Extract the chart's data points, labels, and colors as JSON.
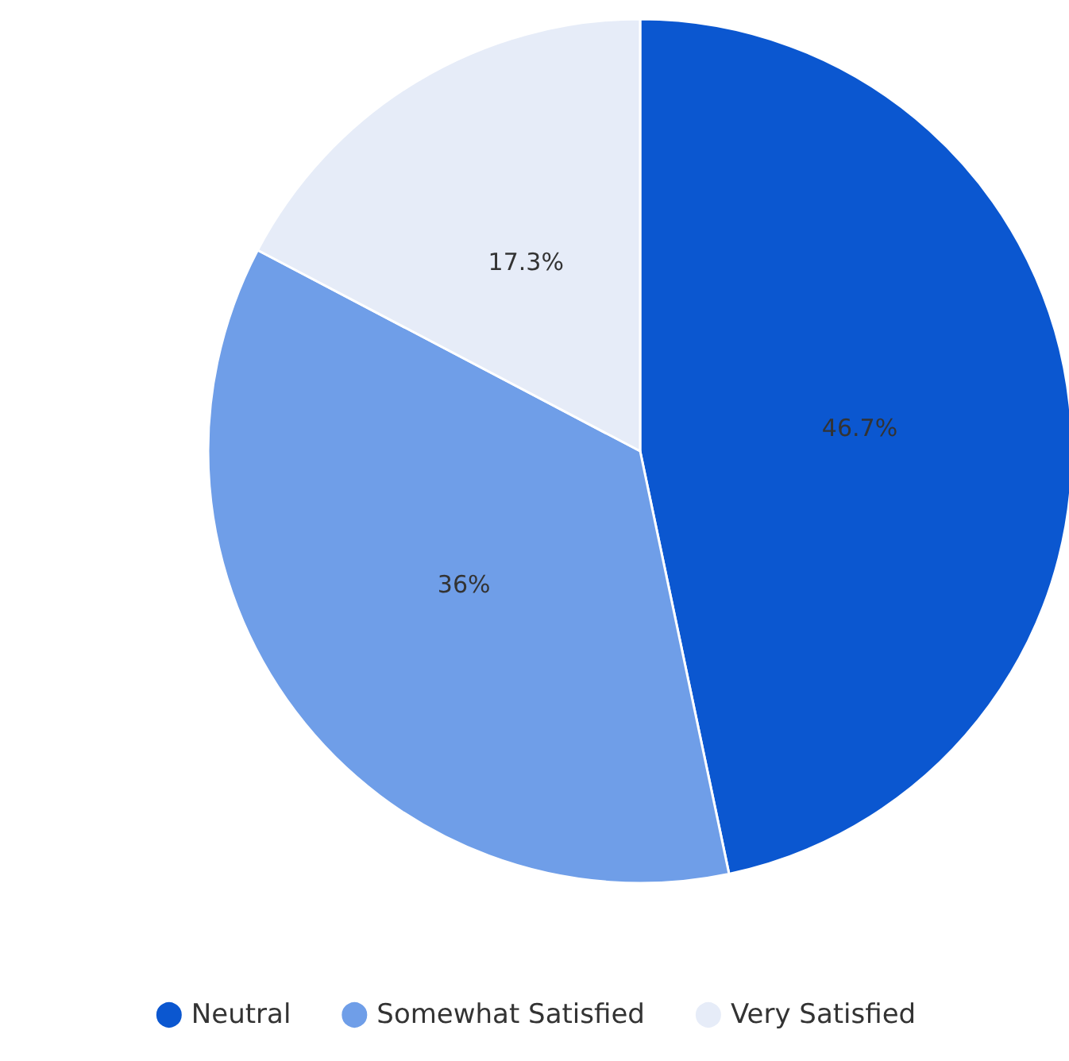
{
  "chart_data": {
    "type": "pie",
    "categories": [
      "Neutral",
      "Somewhat Satisfied",
      "Very Satisfied"
    ],
    "values": [
      46.7,
      36,
      17.3
    ],
    "value_labels": [
      "46.7%",
      "36%",
      "17.3%"
    ],
    "colors": [
      "#0b57d0",
      "#6f9ee8",
      "#e6ecf8"
    ],
    "legend": "bottom"
  }
}
